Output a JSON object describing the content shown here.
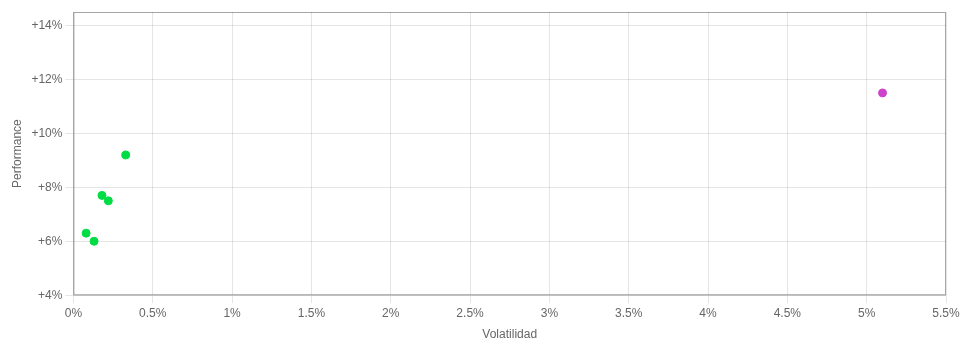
{
  "chart_data": {
    "type": "scatter",
    "xlabel": "Volatilidad",
    "ylabel": "Performance",
    "xlim": [
      0,
      0.055
    ],
    "ylim": [
      0.04,
      0.145
    ],
    "xticks": [
      {
        "value": 0.0,
        "label": "0%"
      },
      {
        "value": 0.005,
        "label": "0.5%"
      },
      {
        "value": 0.01,
        "label": "1%"
      },
      {
        "value": 0.015,
        "label": "1.5%"
      },
      {
        "value": 0.02,
        "label": "2%"
      },
      {
        "value": 0.025,
        "label": "2.5%"
      },
      {
        "value": 0.03,
        "label": "3%"
      },
      {
        "value": 0.035,
        "label": "3.5%"
      },
      {
        "value": 0.04,
        "label": "4%"
      },
      {
        "value": 0.045,
        "label": "4.5%"
      },
      {
        "value": 0.05,
        "label": "5%"
      },
      {
        "value": 0.055,
        "label": "5.5%"
      }
    ],
    "yticks": [
      {
        "value": 0.04,
        "label": "+4%"
      },
      {
        "value": 0.06,
        "label": "+6%"
      },
      {
        "value": 0.08,
        "label": "+8%"
      },
      {
        "value": 0.1,
        "label": "+10%"
      },
      {
        "value": 0.12,
        "label": "+12%"
      },
      {
        "value": 0.14,
        "label": "+14%"
      }
    ],
    "grid": true,
    "series": [
      {
        "color": "#00dd44",
        "x": [
          0.0033,
          0.0018,
          0.0022,
          0.0008,
          0.0013
        ],
        "values": [
          0.092,
          0.077,
          0.075,
          0.063,
          0.06
        ]
      },
      {
        "color": "#cc44cc",
        "x": [
          0.051
        ],
        "values": [
          0.115
        ]
      }
    ]
  }
}
